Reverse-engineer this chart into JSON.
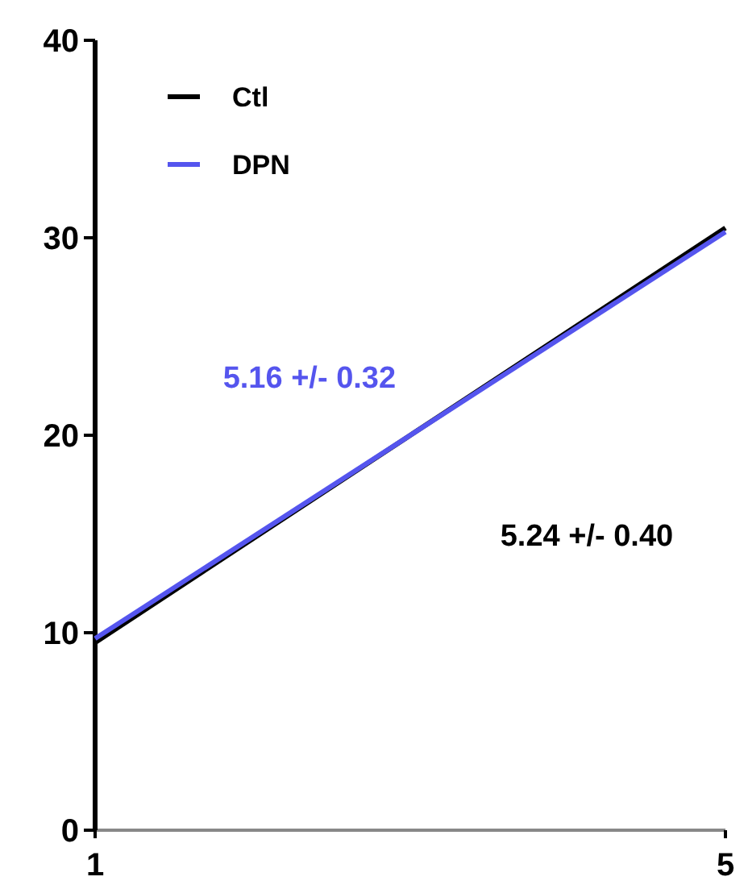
{
  "chart_data": {
    "type": "line",
    "x": [
      1,
      5
    ],
    "xlim": [
      1,
      5
    ],
    "xticks": [
      1,
      5
    ],
    "ylim": [
      0,
      40
    ],
    "yticks": [
      0,
      10,
      20,
      30,
      40
    ],
    "grid": false,
    "legend": "top left",
    "marker": "none",
    "line_style": "solid",
    "series": [
      {
        "name": "Ctl",
        "color": "#000000",
        "values": [
          9.5,
          30.5
        ]
      },
      {
        "name": "DPN",
        "color": "#5555ee",
        "values": [
          9.7,
          30.3
        ]
      }
    ],
    "annotations": [
      "5.24 +/- 0.40",
      "5.16 +/- 0.32"
    ]
  }
}
